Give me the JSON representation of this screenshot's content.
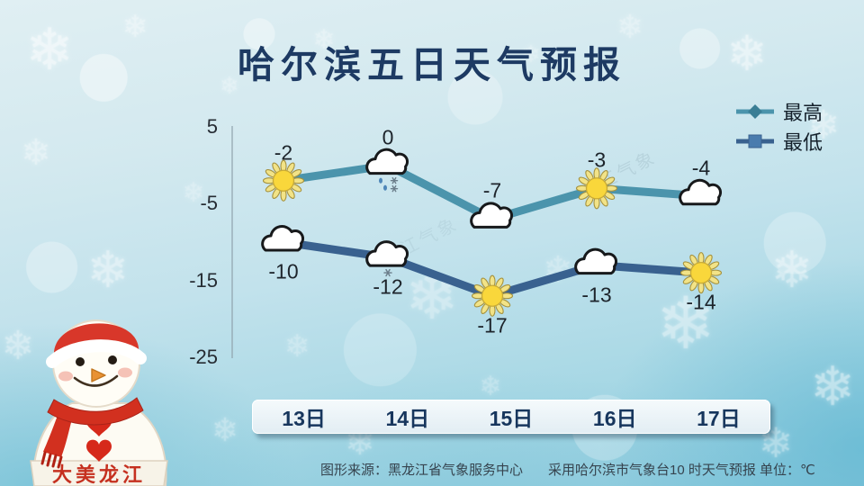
{
  "title": "哈尔滨五日天气预报",
  "watermark": "龙江气象",
  "legend": {
    "high_label": "最高",
    "low_label": "最低"
  },
  "colors": {
    "high_line": "#4b94ac",
    "high_marker": "#3a7e95",
    "low_line": "#39618f",
    "low_marker": "#4a7cae",
    "title_text": "#1d3a63",
    "day_label": "#17365d"
  },
  "chart_data": {
    "type": "line",
    "title": "哈尔滨五日天气预报",
    "unit": "℃",
    "categories": [
      "13日",
      "14日",
      "15日",
      "16日",
      "17日"
    ],
    "yticks": [
      5,
      -5,
      -15,
      -25
    ],
    "ylim": [
      -25,
      5
    ],
    "grid": false,
    "legend_position": "top-right",
    "series": [
      {
        "name": "最高",
        "values": [
          -2,
          0,
          -7,
          -3,
          -4
        ],
        "color": "#4b94ac",
        "marker": "diamond",
        "icons": [
          "sunny",
          "sleet",
          "cloudy",
          "sunny",
          "cloudy"
        ]
      },
      {
        "name": "最低",
        "values": [
          -10,
          -12,
          -17,
          -13,
          -14
        ],
        "color": "#39618f",
        "marker": "square",
        "icons": [
          "cloudy",
          "light-snow",
          "sunny",
          "cloudy",
          "sunny"
        ]
      }
    ]
  },
  "footer": {
    "source": "图形来源：黑龙江省气象服务中心",
    "note": "采用哈尔滨市气象台10 时天气预报 单位：℃"
  },
  "snowman": {
    "banner": "大美龙江"
  }
}
